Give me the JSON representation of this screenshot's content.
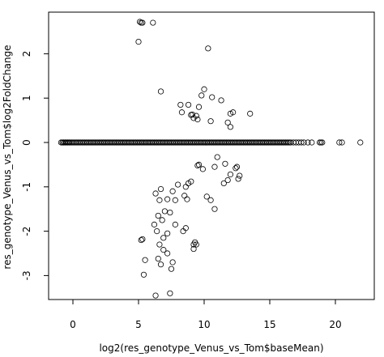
{
  "chart_data": {
    "type": "scatter",
    "title": "",
    "xlabel": "log2(res_genotype_Venus_vs_Tom$baseMean)",
    "ylabel": "res_genotype_Venus_vs_Tom$log2FoldChange",
    "xlim": [
      -1.5,
      22.5
    ],
    "ylim": [
      -3.6,
      2.9
    ],
    "x_ticks": [
      0,
      5,
      10,
      15,
      20
    ],
    "y_ticks": [
      -3,
      -2,
      -1,
      0,
      1,
      2
    ],
    "x_tick_labels": [
      "0",
      "5",
      "10",
      "15",
      "20"
    ],
    "y_tick_labels": [
      "-3",
      "-2",
      "-1",
      "0",
      "1",
      "2"
    ],
    "grid": false,
    "marker": "open-circle",
    "dense_zero_band": {
      "y": 0,
      "x_from": -0.9,
      "x_to": 16.5,
      "step": 0.1
    },
    "points": [
      [
        -0.8,
        0
      ],
      [
        -0.7,
        0
      ],
      [
        -0.6,
        0
      ],
      [
        -0.5,
        0
      ],
      [
        -0.4,
        0
      ],
      [
        -0.3,
        0
      ],
      [
        16.6,
        0
      ],
      [
        16.8,
        0
      ],
      [
        17.0,
        0
      ],
      [
        17.2,
        0
      ],
      [
        17.4,
        0
      ],
      [
        17.6,
        0
      ],
      [
        17.9,
        0
      ],
      [
        18.2,
        0
      ],
      [
        18.8,
        0
      ],
      [
        18.9,
        0
      ],
      [
        19.0,
        0
      ],
      [
        20.3,
        0
      ],
      [
        20.5,
        0
      ],
      [
        21.9,
        0
      ],
      [
        5.1,
        2.72
      ],
      [
        5.2,
        2.7
      ],
      [
        5.3,
        2.7
      ],
      [
        6.1,
        2.7
      ],
      [
        5.0,
        2.27
      ],
      [
        10.3,
        2.12
      ],
      [
        6.7,
        1.15
      ],
      [
        10.0,
        1.2
      ],
      [
        9.8,
        1.06
      ],
      [
        10.6,
        1.02
      ],
      [
        11.3,
        0.95
      ],
      [
        8.2,
        0.85
      ],
      [
        8.8,
        0.85
      ],
      [
        9.6,
        0.8
      ],
      [
        8.3,
        0.68
      ],
      [
        9.0,
        0.62
      ],
      [
        9.2,
        0.55
      ],
      [
        9.4,
        0.6
      ],
      [
        12.2,
        0.68
      ],
      [
        12.0,
        0.65
      ],
      [
        13.5,
        0.65
      ],
      [
        10.5,
        0.48
      ],
      [
        11.8,
        0.45
      ],
      [
        12.0,
        0.35
      ],
      [
        9.1,
        0.63
      ],
      [
        9.5,
        0.52
      ],
      [
        11.0,
        -0.33
      ],
      [
        12.5,
        -0.55
      ],
      [
        12.7,
        -0.75
      ],
      [
        12.4,
        -0.58
      ],
      [
        10.8,
        -0.55
      ],
      [
        9.9,
        -0.6
      ],
      [
        9.6,
        -0.5
      ],
      [
        9.5,
        -0.52
      ],
      [
        11.6,
        -0.48
      ],
      [
        12.0,
        -0.72
      ],
      [
        11.8,
        -0.85
      ],
      [
        11.5,
        -0.92
      ],
      [
        12.6,
        -0.82
      ],
      [
        10.2,
        -1.22
      ],
      [
        10.5,
        -1.3
      ],
      [
        10.8,
        -1.5
      ],
      [
        9.0,
        -0.88
      ],
      [
        8.8,
        -0.92
      ],
      [
        8.6,
        -1.0
      ],
      [
        8.0,
        -0.95
      ],
      [
        7.6,
        -1.1
      ],
      [
        8.5,
        -1.2
      ],
      [
        8.7,
        -1.28
      ],
      [
        7.8,
        -1.3
      ],
      [
        7.2,
        -1.28
      ],
      [
        6.7,
        -1.05
      ],
      [
        6.6,
        -1.3
      ],
      [
        6.3,
        -1.15
      ],
      [
        7.0,
        -1.55
      ],
      [
        7.4,
        -1.58
      ],
      [
        6.8,
        -1.75
      ],
      [
        6.5,
        -1.65
      ],
      [
        6.2,
        -1.85
      ],
      [
        7.8,
        -1.85
      ],
      [
        7.2,
        -2.05
      ],
      [
        6.4,
        -2.0
      ],
      [
        6.9,
        -2.15
      ],
      [
        5.3,
        -2.18
      ],
      [
        5.2,
        -2.2
      ],
      [
        6.6,
        -2.3
      ],
      [
        6.9,
        -2.42
      ],
      [
        9.3,
        -2.25
      ],
      [
        9.4,
        -2.3
      ],
      [
        9.2,
        -2.4
      ],
      [
        8.4,
        -2.0
      ],
      [
        8.6,
        -1.93
      ],
      [
        5.5,
        -2.65
      ],
      [
        6.7,
        -2.75
      ],
      [
        7.2,
        -2.5
      ],
      [
        7.6,
        -2.7
      ],
      [
        7.5,
        -2.85
      ],
      [
        5.4,
        -2.98
      ],
      [
        6.3,
        -3.45
      ],
      [
        7.4,
        -3.4
      ],
      [
        6.5,
        -2.62
      ],
      [
        9.2,
        -2.3
      ]
    ]
  }
}
